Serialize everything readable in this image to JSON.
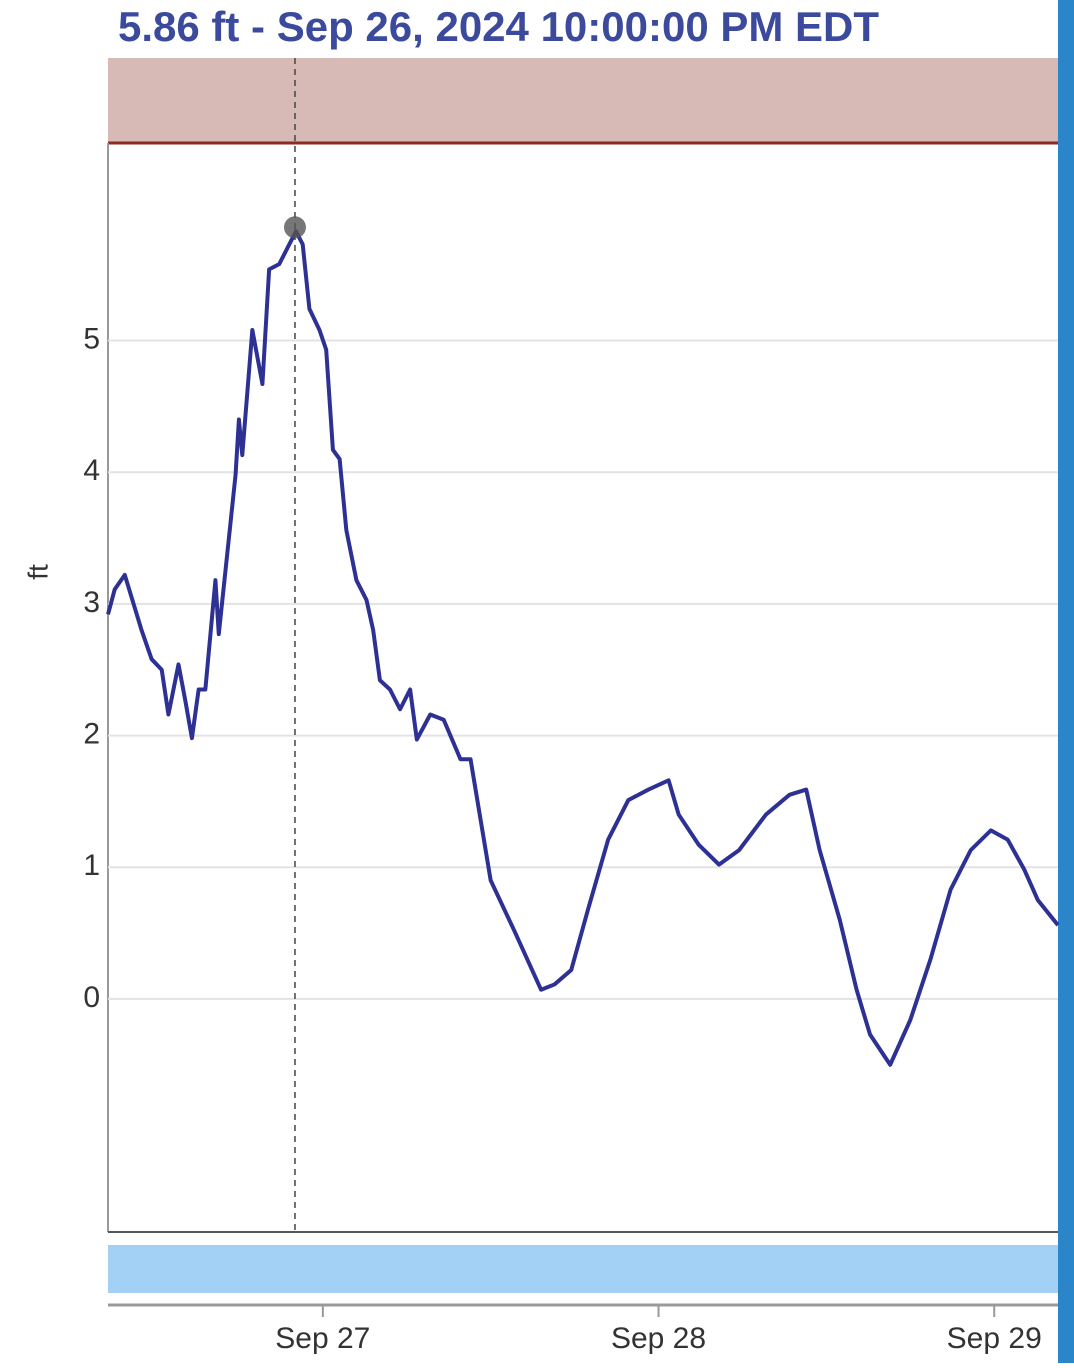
{
  "chart_data": {
    "type": "line",
    "title": "5.86 ft - Sep 26, 2024 10:00:00 PM EDT",
    "y_label": "ft",
    "x": [
      26.36,
      26.38,
      26.41,
      26.46,
      26.49,
      26.52,
      26.54,
      26.57,
      26.59,
      26.61,
      26.63,
      26.65,
      26.68,
      26.69,
      26.74,
      26.75,
      26.76,
      26.79,
      26.82,
      26.84,
      26.87,
      26.9,
      26.92,
      26.94,
      26.96,
      26.99,
      27.01,
      27.03,
      27.05,
      27.07,
      27.1,
      27.13,
      27.15,
      27.17,
      27.2,
      27.23,
      27.26,
      27.28,
      27.32,
      27.36,
      27.41,
      27.44,
      27.5,
      27.57,
      27.65,
      27.69,
      27.74,
      27.79,
      27.85,
      27.91,
      27.97,
      28.03,
      28.06,
      28.12,
      28.18,
      28.24,
      28.32,
      28.39,
      28.44,
      28.48,
      28.54,
      28.59,
      28.63,
      28.69,
      28.75,
      28.81,
      28.87,
      28.93,
      28.99,
      29.04,
      29.09,
      29.13,
      29.19
    ],
    "series": [
      {
        "name": "ft",
        "color": "#2d3194",
        "values": [
          2.92,
          3.11,
          3.22,
          2.8,
          2.58,
          2.5,
          2.16,
          2.54,
          2.27,
          1.98,
          2.35,
          2.35,
          3.18,
          2.77,
          3.98,
          4.4,
          4.13,
          5.08,
          4.67,
          5.54,
          5.58,
          5.73,
          5.83,
          5.73,
          5.24,
          5.08,
          4.93,
          4.17,
          4.1,
          3.56,
          3.18,
          3.03,
          2.8,
          2.42,
          2.35,
          2.2,
          2.35,
          1.97,
          2.16,
          2.12,
          1.82,
          1.82,
          0.9,
          0.52,
          0.07,
          0.11,
          0.22,
          0.68,
          1.21,
          1.51,
          1.59,
          1.66,
          1.4,
          1.17,
          1.02,
          1.13,
          1.4,
          1.55,
          1.59,
          1.13,
          0.6,
          0.07,
          -0.27,
          -0.5,
          -0.16,
          0.3,
          0.83,
          1.13,
          1.28,
          1.21,
          0.98,
          0.75,
          0.56
        ]
      }
    ],
    "highlight": {
      "x": 26.917,
      "value": 5.86
    },
    "xlim": [
      26.36,
      29.19
    ],
    "xticks": [
      {
        "value": 27,
        "label": "Sep 27"
      },
      {
        "value": 28,
        "label": "Sep 28"
      },
      {
        "value": 29,
        "label": "Sep 29"
      }
    ],
    "ylim": [
      -1.77,
      6.5
    ],
    "yticks": [
      0,
      1,
      2,
      3,
      4,
      5
    ],
    "grid": true
  }
}
